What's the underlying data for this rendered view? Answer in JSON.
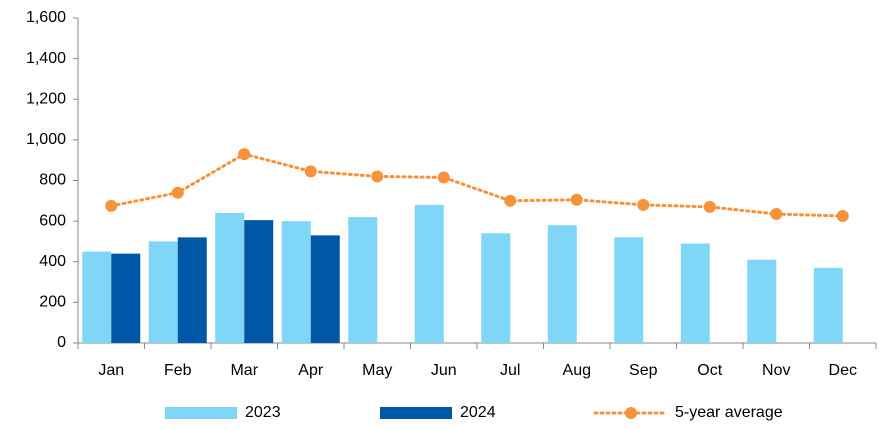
{
  "chart_data": {
    "type": "bar",
    "categories": [
      "Jan",
      "Feb",
      "Mar",
      "Apr",
      "May",
      "Jun",
      "Jul",
      "Aug",
      "Sep",
      "Oct",
      "Nov",
      "Dec"
    ],
    "series": [
      {
        "name": "2023",
        "color": "#7fd6f7",
        "values": [
          450,
          500,
          640,
          600,
          620,
          680,
          540,
          580,
          520,
          490,
          410,
          370
        ]
      },
      {
        "name": "2024",
        "color": "#0057a6",
        "values": [
          440,
          520,
          605,
          530,
          null,
          null,
          null,
          null,
          null,
          null,
          null,
          null
        ]
      },
      {
        "name": "5-year average",
        "type": "line",
        "color": "#f5923a",
        "values": [
          675,
          740,
          930,
          845,
          820,
          815,
          700,
          705,
          680,
          670,
          635,
          625
        ]
      }
    ],
    "ylim": [
      0,
      1600
    ],
    "yticks": [
      0,
      200,
      400,
      600,
      800,
      {
        "value": 1000,
        "label": "1,000"
      },
      {
        "value": 1200,
        "label": "1,200"
      },
      {
        "value": 1400,
        "label": "1,400"
      },
      {
        "value": 1600,
        "label": "1,600"
      }
    ],
    "legend": "bottom"
  }
}
